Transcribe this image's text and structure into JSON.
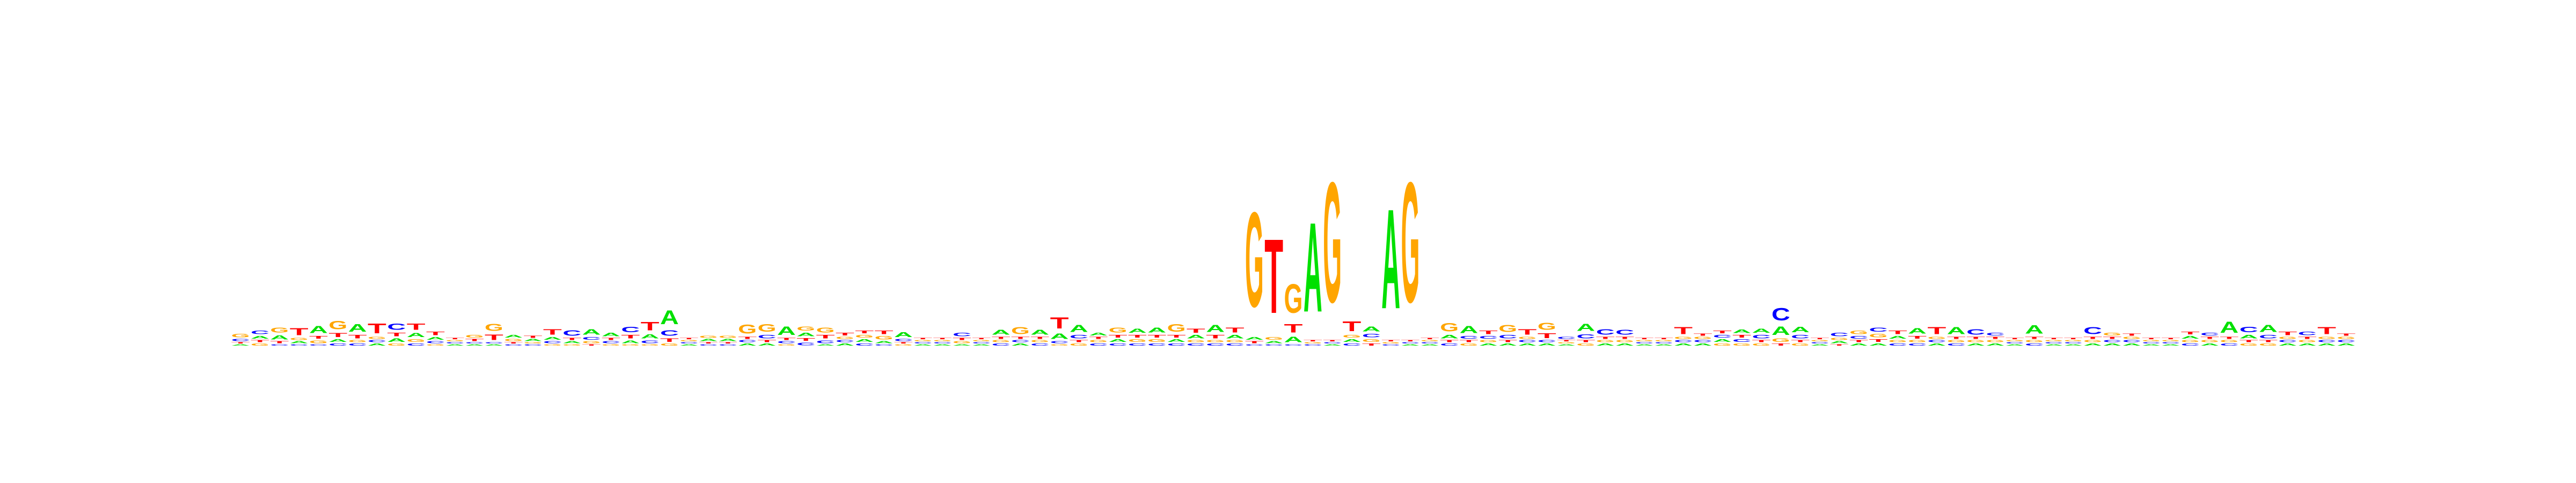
{
  "chart_data": {
    "type": "sequence-logo",
    "alphabet": [
      "A",
      "C",
      "G",
      "T"
    ],
    "colors": {
      "A": "#00e000",
      "C": "#0000ff",
      "G": "#ffa500",
      "T": "#ff0000"
    },
    "units": "bits",
    "ylim": [
      0,
      2
    ],
    "positions": [
      {
        "A": 0.02,
        "C": 0.03,
        "G": 0.05,
        "T": 0.02
      },
      {
        "A": 0.04,
        "C": 0.05,
        "G": 0.03,
        "T": 0.03
      },
      {
        "A": 0.06,
        "C": 0.02,
        "G": 0.07,
        "T": 0.03
      },
      {
        "A": 0.03,
        "C": 0.02,
        "G": 0.03,
        "T": 0.1
      },
      {
        "A": 0.1,
        "C": 0.02,
        "G": 0.04,
        "T": 0.04
      },
      {
        "A": 0.04,
        "C": 0.03,
        "G": 0.12,
        "T": 0.06
      },
      {
        "A": 0.11,
        "C": 0.03,
        "G": 0.03,
        "T": 0.05
      },
      {
        "A": 0.03,
        "C": 0.03,
        "G": 0.03,
        "T": 0.14
      },
      {
        "A": 0.05,
        "C": 0.09,
        "G": 0.03,
        "T": 0.05
      },
      {
        "A": 0.06,
        "C": 0.03,
        "G": 0.04,
        "T": 0.09
      },
      {
        "A": 0.04,
        "C": 0.03,
        "G": 0.02,
        "T": 0.05
      },
      {
        "A": 0.02,
        "C": 0.02,
        "G": 0.02,
        "T": 0.02
      },
      {
        "A": 0.02,
        "C": 0.02,
        "G": 0.04,
        "T": 0.03
      },
      {
        "A": 0.02,
        "C": 0.02,
        "G": 0.1,
        "T": 0.08
      },
      {
        "A": 0.04,
        "C": 0.02,
        "G": 0.03,
        "T": 0.02
      },
      {
        "A": 0.03,
        "C": 0.02,
        "G": 0.02,
        "T": 0.03
      },
      {
        "A": 0.04,
        "C": 0.03,
        "G": 0.02,
        "T": 0.08
      },
      {
        "A": 0.03,
        "C": 0.08,
        "G": 0.02,
        "T": 0.03
      },
      {
        "A": 0.08,
        "C": 0.04,
        "G": 0.03,
        "T": 0.02
      },
      {
        "A": 0.05,
        "C": 0.03,
        "G": 0.02,
        "T": 0.03
      },
      {
        "A": 0.04,
        "C": 0.08,
        "G": 0.02,
        "T": 0.05
      },
      {
        "A": 0.06,
        "C": 0.04,
        "G": 0.02,
        "T": 0.12
      },
      {
        "A": 0.2,
        "C": 0.08,
        "G": 0.03,
        "T": 0.05
      },
      {
        "A": 0.02,
        "C": 0.02,
        "G": 0.02,
        "T": 0.02
      },
      {
        "A": 0.03,
        "C": 0.02,
        "G": 0.03,
        "T": 0.02
      },
      {
        "A": 0.03,
        "C": 0.02,
        "G": 0.03,
        "T": 0.02
      },
      {
        "A": 0.03,
        "C": 0.03,
        "G": 0.13,
        "T": 0.03
      },
      {
        "A": 0.03,
        "C": 0.05,
        "G": 0.11,
        "T": 0.03
      },
      {
        "A": 0.12,
        "C": 0.03,
        "G": 0.02,
        "T": 0.03
      },
      {
        "A": 0.05,
        "C": 0.04,
        "G": 0.06,
        "T": 0.04
      },
      {
        "A": 0.02,
        "C": 0.04,
        "G": 0.07,
        "T": 0.05
      },
      {
        "A": 0.03,
        "C": 0.03,
        "G": 0.03,
        "T": 0.04
      },
      {
        "A": 0.04,
        "C": 0.03,
        "G": 0.04,
        "T": 0.04
      },
      {
        "A": 0.03,
        "C": 0.02,
        "G": 0.05,
        "T": 0.05
      },
      {
        "A": 0.07,
        "C": 0.03,
        "G": 0.02,
        "T": 0.02
      },
      {
        "A": 0.02,
        "C": 0.02,
        "G": 0.02,
        "T": 0.02
      },
      {
        "A": 0.02,
        "C": 0.02,
        "G": 0.02,
        "T": 0.02
      },
      {
        "A": 0.02,
        "C": 0.05,
        "G": 0.03,
        "T": 0.03
      },
      {
        "A": 0.02,
        "C": 0.02,
        "G": 0.02,
        "T": 0.02
      },
      {
        "A": 0.07,
        "C": 0.03,
        "G": 0.03,
        "T": 0.03
      },
      {
        "A": 0.03,
        "C": 0.03,
        "G": 0.1,
        "T": 0.03
      },
      {
        "A": 0.07,
        "C": 0.03,
        "G": 0.03,
        "T": 0.03
      },
      {
        "A": 0.08,
        "C": 0.03,
        "G": 0.02,
        "T": 0.16
      },
      {
        "A": 0.1,
        "C": 0.05,
        "G": 0.03,
        "T": 0.03
      },
      {
        "A": 0.04,
        "C": 0.03,
        "G": 0.03,
        "T": 0.03
      },
      {
        "A": 0.04,
        "C": 0.03,
        "G": 0.07,
        "T": 0.04
      },
      {
        "A": 0.06,
        "C": 0.03,
        "G": 0.04,
        "T": 0.04
      },
      {
        "A": 0.07,
        "C": 0.03,
        "G": 0.04,
        "T": 0.04
      },
      {
        "A": 0.04,
        "C": 0.03,
        "G": 0.11,
        "T": 0.04
      },
      {
        "A": 0.05,
        "C": 0.03,
        "G": 0.03,
        "T": 0.06
      },
      {
        "A": 0.1,
        "C": 0.03,
        "G": 0.03,
        "T": 0.05
      },
      {
        "A": 0.05,
        "C": 0.03,
        "G": 0.03,
        "T": 0.07
      },
      {
        "A": 0.04,
        "C": 0.02,
        "G": 1.38,
        "T": 0.03
      },
      {
        "A": 0.03,
        "C": 0.02,
        "G": 0.04,
        "T": 1.08
      },
      {
        "A": 0.08,
        "C": 0.02,
        "G": 0.42,
        "T": 0.12
      },
      {
        "A": 1.3,
        "C": 0.02,
        "G": 0.02,
        "T": 0.02
      },
      {
        "A": 0.02,
        "C": 0.02,
        "G": 1.75,
        "T": 0.02
      },
      {
        "A": 0.04,
        "C": 0.03,
        "G": 0.04,
        "T": 0.14
      },
      {
        "A": 0.07,
        "C": 0.05,
        "G": 0.04,
        "T": 0.03
      },
      {
        "A": 1.45,
        "C": 0.02,
        "G": 0.02,
        "T": 0.02
      },
      {
        "A": 0.02,
        "C": 0.02,
        "G": 1.75,
        "T": 0.02
      },
      {
        "A": 0.02,
        "C": 0.02,
        "G": 0.02,
        "T": 0.02
      },
      {
        "A": 0.05,
        "C": 0.03,
        "G": 0.12,
        "T": 0.03
      },
      {
        "A": 0.1,
        "C": 0.04,
        "G": 0.03,
        "T": 0.03
      },
      {
        "A": 0.03,
        "C": 0.04,
        "G": 0.03,
        "T": 0.05
      },
      {
        "A": 0.03,
        "C": 0.05,
        "G": 0.1,
        "T": 0.03
      },
      {
        "A": 0.03,
        "C": 0.03,
        "G": 0.03,
        "T": 0.08
      },
      {
        "A": 0.03,
        "C": 0.03,
        "G": 0.1,
        "T": 0.07
      },
      {
        "A": 0.02,
        "C": 0.03,
        "G": 0.02,
        "T": 0.02
      },
      {
        "A": 0.1,
        "C": 0.06,
        "G": 0.03,
        "T": 0.03
      },
      {
        "A": 0.03,
        "C": 0.08,
        "G": 0.03,
        "T": 0.03
      },
      {
        "A": 0.03,
        "C": 0.07,
        "G": 0.03,
        "T": 0.03
      },
      {
        "A": 0.02,
        "C": 0.02,
        "G": 0.02,
        "T": 0.02
      },
      {
        "A": 0.02,
        "C": 0.02,
        "G": 0.02,
        "T": 0.02
      },
      {
        "A": 0.03,
        "C": 0.03,
        "G": 0.03,
        "T": 0.1
      },
      {
        "A": 0.03,
        "C": 0.03,
        "G": 0.03,
        "T": 0.03
      },
      {
        "A": 0.04,
        "C": 0.04,
        "G": 0.03,
        "T": 0.04
      },
      {
        "A": 0.05,
        "C": 0.04,
        "G": 0.03,
        "T": 0.04
      },
      {
        "A": 0.06,
        "C": 0.05,
        "G": 0.03,
        "T": 0.03
      },
      {
        "A": 0.12,
        "C": 0.18,
        "G": 0.05,
        "T": 0.03
      },
      {
        "A": 0.08,
        "C": 0.05,
        "G": 0.03,
        "T": 0.03
      },
      {
        "A": 0.02,
        "C": 0.02,
        "G": 0.02,
        "T": 0.02
      },
      {
        "A": 0.03,
        "C": 0.05,
        "G": 0.03,
        "T": 0.02
      },
      {
        "A": 0.03,
        "C": 0.04,
        "G": 0.05,
        "T": 0.03
      },
      {
        "A": 0.03,
        "C": 0.06,
        "G": 0.05,
        "T": 0.04
      },
      {
        "A": 0.04,
        "C": 0.03,
        "G": 0.03,
        "T": 0.05
      },
      {
        "A": 0.08,
        "C": 0.03,
        "G": 0.03,
        "T": 0.04
      },
      {
        "A": 0.03,
        "C": 0.03,
        "G": 0.03,
        "T": 0.1
      },
      {
        "A": 0.1,
        "C": 0.03,
        "G": 0.03,
        "T": 0.03
      },
      {
        "A": 0.03,
        "C": 0.08,
        "G": 0.03,
        "T": 0.03
      },
      {
        "A": 0.03,
        "C": 0.04,
        "G": 0.03,
        "T": 0.03
      },
      {
        "A": 0.02,
        "C": 0.02,
        "G": 0.02,
        "T": 0.02
      },
      {
        "A": 0.12,
        "C": 0.03,
        "G": 0.03,
        "T": 0.03
      },
      {
        "A": 0.02,
        "C": 0.02,
        "G": 0.02,
        "T": 0.02
      },
      {
        "A": 0.02,
        "C": 0.02,
        "G": 0.02,
        "T": 0.02
      },
      {
        "A": 0.03,
        "C": 0.1,
        "G": 0.03,
        "T": 0.03
      },
      {
        "A": 0.03,
        "C": 0.03,
        "G": 0.04,
        "T": 0.03
      },
      {
        "A": 0.03,
        "C": 0.03,
        "G": 0.03,
        "T": 0.03
      },
      {
        "A": 0.02,
        "C": 0.02,
        "G": 0.02,
        "T": 0.02
      },
      {
        "A": 0.02,
        "C": 0.02,
        "G": 0.02,
        "T": 0.02
      },
      {
        "A": 0.04,
        "C": 0.03,
        "G": 0.03,
        "T": 0.04
      },
      {
        "A": 0.03,
        "C": 0.04,
        "G": 0.03,
        "T": 0.03
      },
      {
        "A": 0.16,
        "C": 0.03,
        "G": 0.03,
        "T": 0.03
      },
      {
        "A": 0.05,
        "C": 0.08,
        "G": 0.03,
        "T": 0.03
      },
      {
        "A": 0.1,
        "C": 0.05,
        "G": 0.03,
        "T": 0.03
      },
      {
        "A": 0.03,
        "C": 0.03,
        "G": 0.03,
        "T": 0.05
      },
      {
        "A": 0.03,
        "C": 0.05,
        "G": 0.03,
        "T": 0.03
      },
      {
        "A": 0.03,
        "C": 0.03,
        "G": 0.03,
        "T": 0.1
      },
      {
        "A": 0.03,
        "C": 0.03,
        "G": 0.03,
        "T": 0.03
      }
    ]
  }
}
